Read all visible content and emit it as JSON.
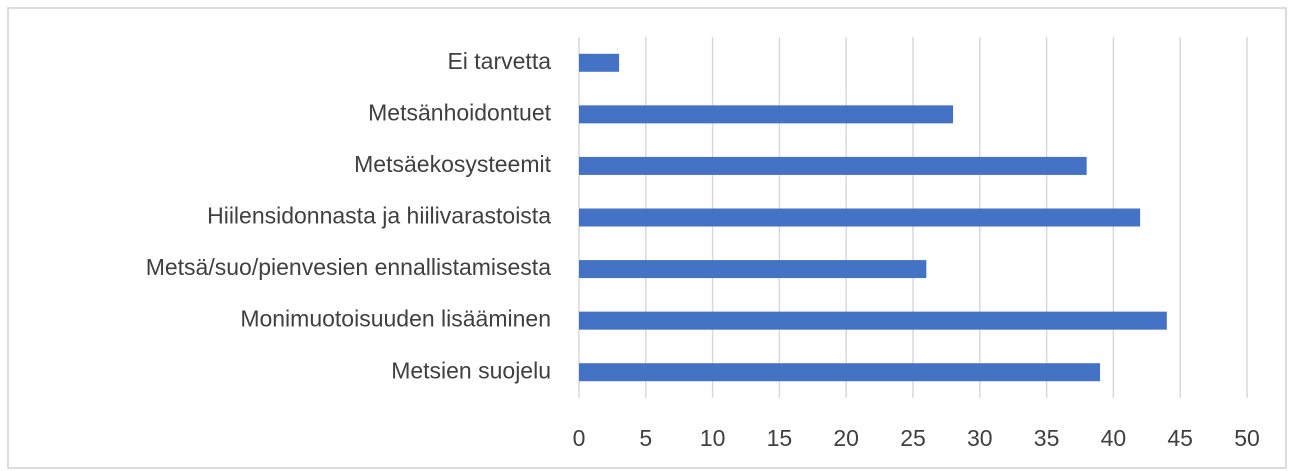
{
  "chart_data": {
    "type": "bar",
    "orientation": "horizontal",
    "categories": [
      "Ei tarvetta",
      "Metsänhoidontuet",
      "Metsäekosysteemit",
      "Hiilensidonnasta ja hiilivarastoista",
      "Metsä/suo/pienvesien ennallistamisesta",
      "Monimuotoisuuden lisääminen",
      "Metsien suojelu"
    ],
    "values": [
      3,
      28,
      38,
      42,
      26,
      44,
      39
    ],
    "color": "#4472c4",
    "xlim": [
      0,
      50
    ],
    "xticks": [
      0,
      5,
      10,
      15,
      20,
      25,
      30,
      35,
      40,
      45,
      50
    ],
    "grid": true
  }
}
